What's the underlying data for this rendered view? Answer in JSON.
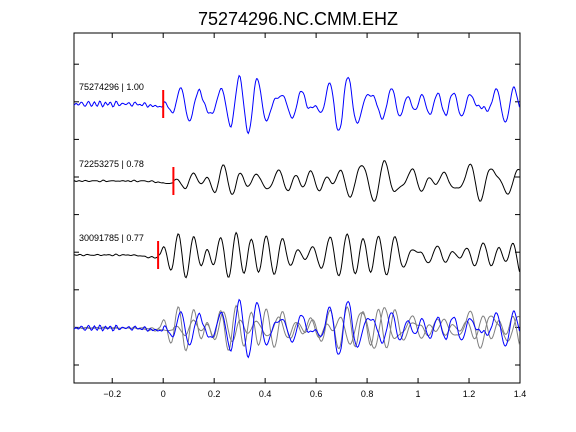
{
  "chart_data": {
    "type": "line",
    "title": "75274296.NC.CMM.EHZ",
    "xlabel": "",
    "ylabel": "",
    "xlim": [
      -0.35,
      1.4
    ],
    "x_ticks": [
      -0.2,
      0,
      0.2,
      0.4,
      0.6,
      0.8,
      1,
      1.2,
      1.4
    ],
    "x_tick_labels": [
      "−0.2",
      "0",
      "0.2",
      "0.4",
      "0.6",
      "0.8",
      "1",
      "1.2",
      "1.4"
    ],
    "grid": false,
    "legend": "none",
    "colors": {
      "primary": "#0000ff",
      "secondary": "#000000",
      "overlay": "#808080",
      "pick": "#ff0000"
    },
    "traces": [
      {
        "label": "75274296 | 1.00",
        "color": "#0000ff",
        "pick_time": 0.0
      },
      {
        "label": "72253275 | 0.78",
        "color": "#000000",
        "pick_time": 0.04
      },
      {
        "label": "30091785 | 0.77",
        "color": "#000000",
        "pick_time": -0.02
      }
    ],
    "stack": {
      "primary_color": "#0000ff",
      "overlay_color": "#808080",
      "count": 3
    }
  }
}
